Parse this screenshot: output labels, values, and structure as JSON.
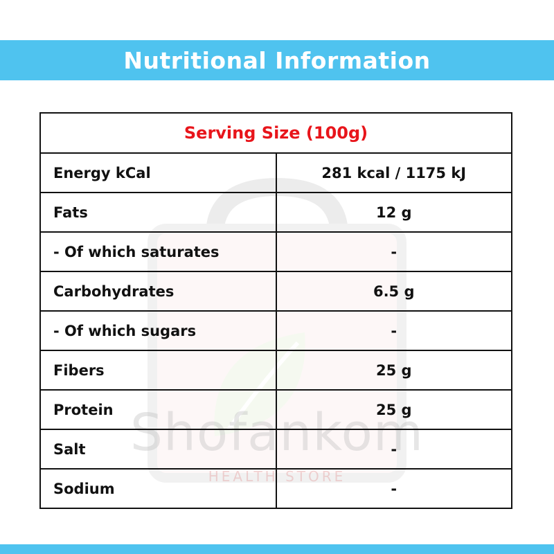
{
  "header": {
    "title": "Nutritional Information"
  },
  "table": {
    "serving_size": "Serving Size (100g)",
    "rows": [
      {
        "label": "Energy kCal",
        "value": "281 kcal / 1175 kJ"
      },
      {
        "label": "Fats",
        "value": "12 g"
      },
      {
        "label": "- Of which saturates",
        "value": "-"
      },
      {
        "label": "Carbohydrates",
        "value": "6.5 g"
      },
      {
        "label": "- Of which sugars",
        "value": "-"
      },
      {
        "label": "Fibers",
        "value": "25 g"
      },
      {
        "label": "Protein",
        "value": "25 g"
      },
      {
        "label": "Salt",
        "value": "-"
      },
      {
        "label": "Sodium",
        "value": "-"
      }
    ]
  },
  "watermark": {
    "brand": "Shofankom",
    "tagline": "HEALTH STORE"
  },
  "colors": {
    "band": "#4fc3ef",
    "serving_text": "#e8151b",
    "text": "#111111"
  }
}
